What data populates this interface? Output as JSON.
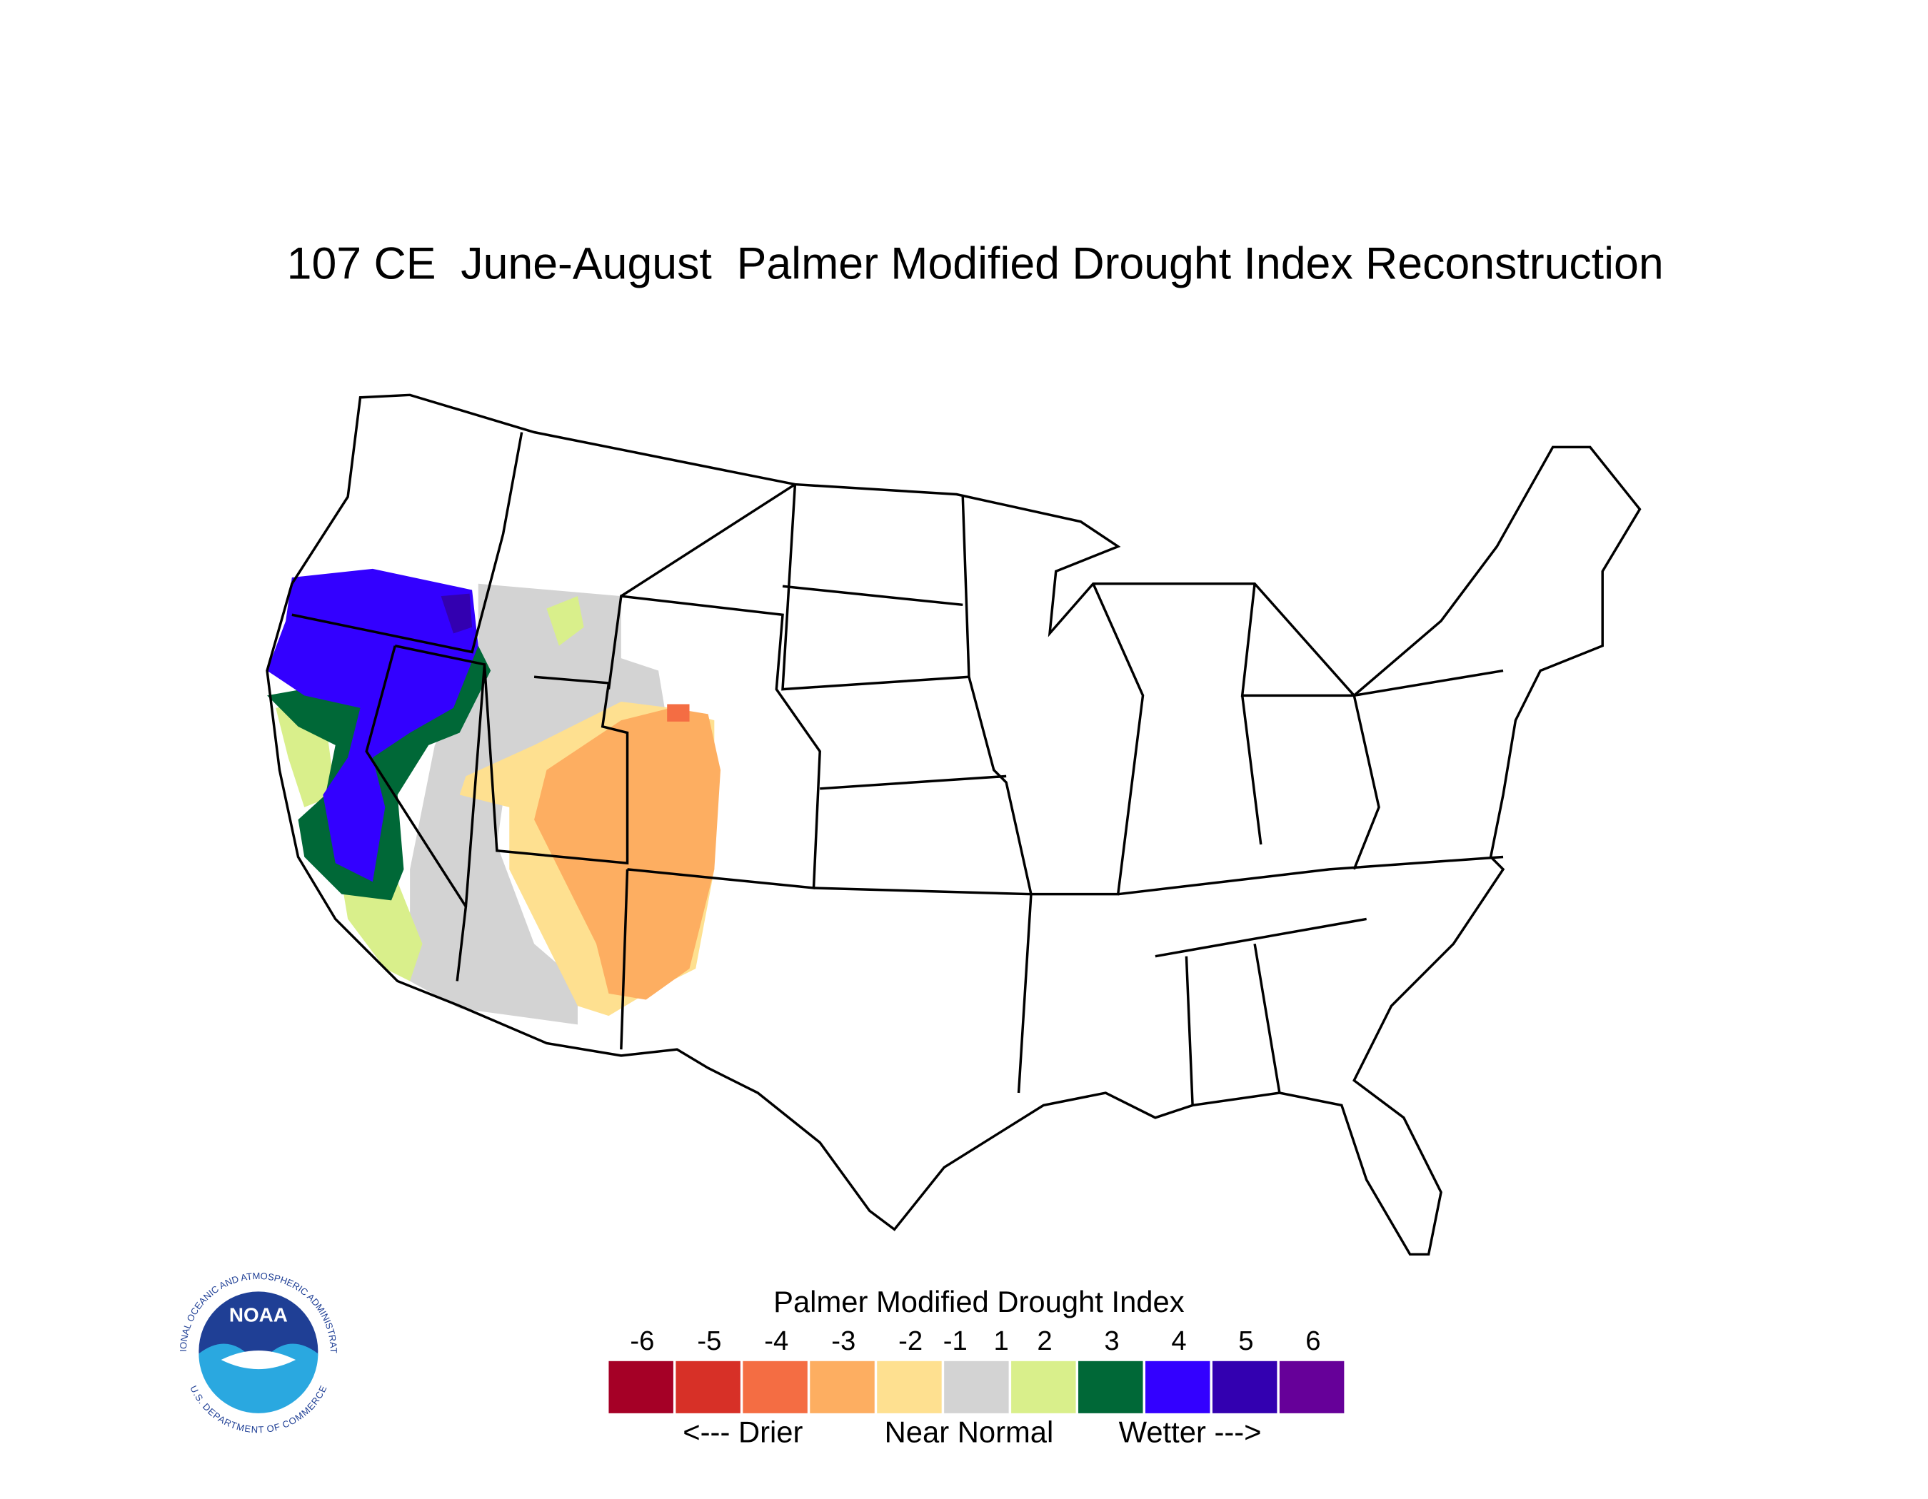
{
  "title": "107 CE  June-August  Palmer Modified Drought Index Reconstruction",
  "legend": {
    "title": "Palmer Modified Drought Index",
    "ticks": [
      -6,
      -5,
      -4,
      -3,
      -2,
      -1,
      1,
      2,
      3,
      4,
      5,
      6
    ],
    "colors": [
      "#a50026",
      "#d73027",
      "#f46d43",
      "#fdae61",
      "#fee090",
      "#d3d3d3",
      "#d9ef8b",
      "#006837",
      "#3300ff",
      "#3300b0",
      "#660099"
    ],
    "labels": [
      "<--- Drier",
      "Near Normal",
      "Wetter --->"
    ]
  },
  "logo": {
    "name": "NOAA",
    "top": "NATIONAL OCEANIC AND ATMOSPHERIC ADMINISTRATION",
    "bottom": "U.S. DEPARTMENT OF COMMERCE"
  }
}
